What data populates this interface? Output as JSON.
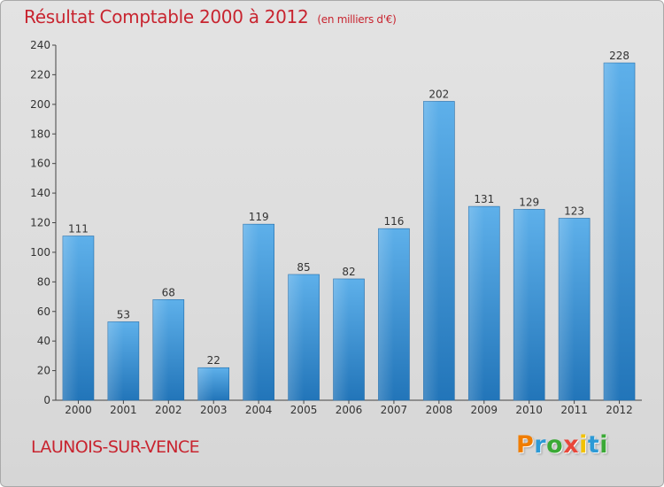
{
  "title": "Résultat Comptable 2000 à 2012",
  "subtitle": "(en milliers d'€)",
  "commune": "LAUNOIS-SUR-VENCE",
  "brand": {
    "letters": [
      "P",
      "r",
      "o",
      "x",
      "i",
      "t",
      "i"
    ],
    "colors": [
      "#f07d00",
      "#2c9ad6",
      "#3aa935",
      "#e8473a",
      "#f2c200",
      "#2c9ad6",
      "#3aa935"
    ]
  },
  "colors": {
    "title": "#c8242f",
    "bar_top": "#5eb0ea",
    "bar_bottom": "#2275b9"
  },
  "chart_data": {
    "type": "bar",
    "title": "Résultat Comptable 2000 à 2012",
    "subtitle": "(en milliers d'€)",
    "categories": [
      "2000",
      "2001",
      "2002",
      "2003",
      "2004",
      "2005",
      "2006",
      "2007",
      "2008",
      "2009",
      "2010",
      "2011",
      "2012"
    ],
    "values": [
      111,
      53,
      68,
      22,
      119,
      85,
      82,
      116,
      202,
      131,
      129,
      123,
      228
    ],
    "value_labels": [
      "111",
      "53",
      "68",
      "22",
      "119",
      "85",
      "82",
      "116",
      "202",
      "131",
      "129",
      "123",
      "228"
    ],
    "yticks": [
      0,
      20,
      40,
      60,
      80,
      100,
      120,
      140,
      160,
      180,
      200,
      220,
      240
    ],
    "ytick_labels": [
      "0",
      "20",
      "40",
      "60",
      "80",
      "100",
      "120",
      "140",
      "160",
      "180",
      "200",
      "220",
      "240"
    ],
    "ylim": [
      0,
      240
    ],
    "xlabel": "",
    "ylabel": "",
    "grid": false,
    "legend": "none"
  }
}
